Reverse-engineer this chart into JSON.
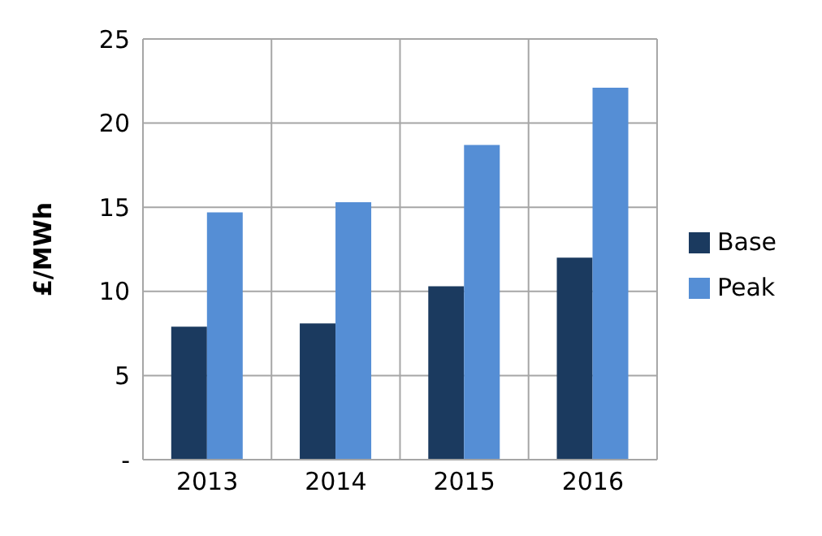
{
  "chart_data": {
    "type": "bar",
    "ylabel": "£/MWh",
    "categories": [
      "2013",
      "2014",
      "2015",
      "2016"
    ],
    "series": [
      {
        "name": "Base",
        "color": "#1b3a5f",
        "values": [
          7.9,
          8.1,
          10.3,
          12.0
        ]
      },
      {
        "name": "Peak",
        "color": "#558ed5",
        "values": [
          14.7,
          15.3,
          18.7,
          22.1
        ]
      }
    ],
    "ylim": [
      0,
      25
    ],
    "yticks": [
      {
        "value": 0,
        "label": "-"
      },
      5,
      10,
      15,
      20,
      25
    ],
    "grid": true,
    "legend": "right"
  }
}
